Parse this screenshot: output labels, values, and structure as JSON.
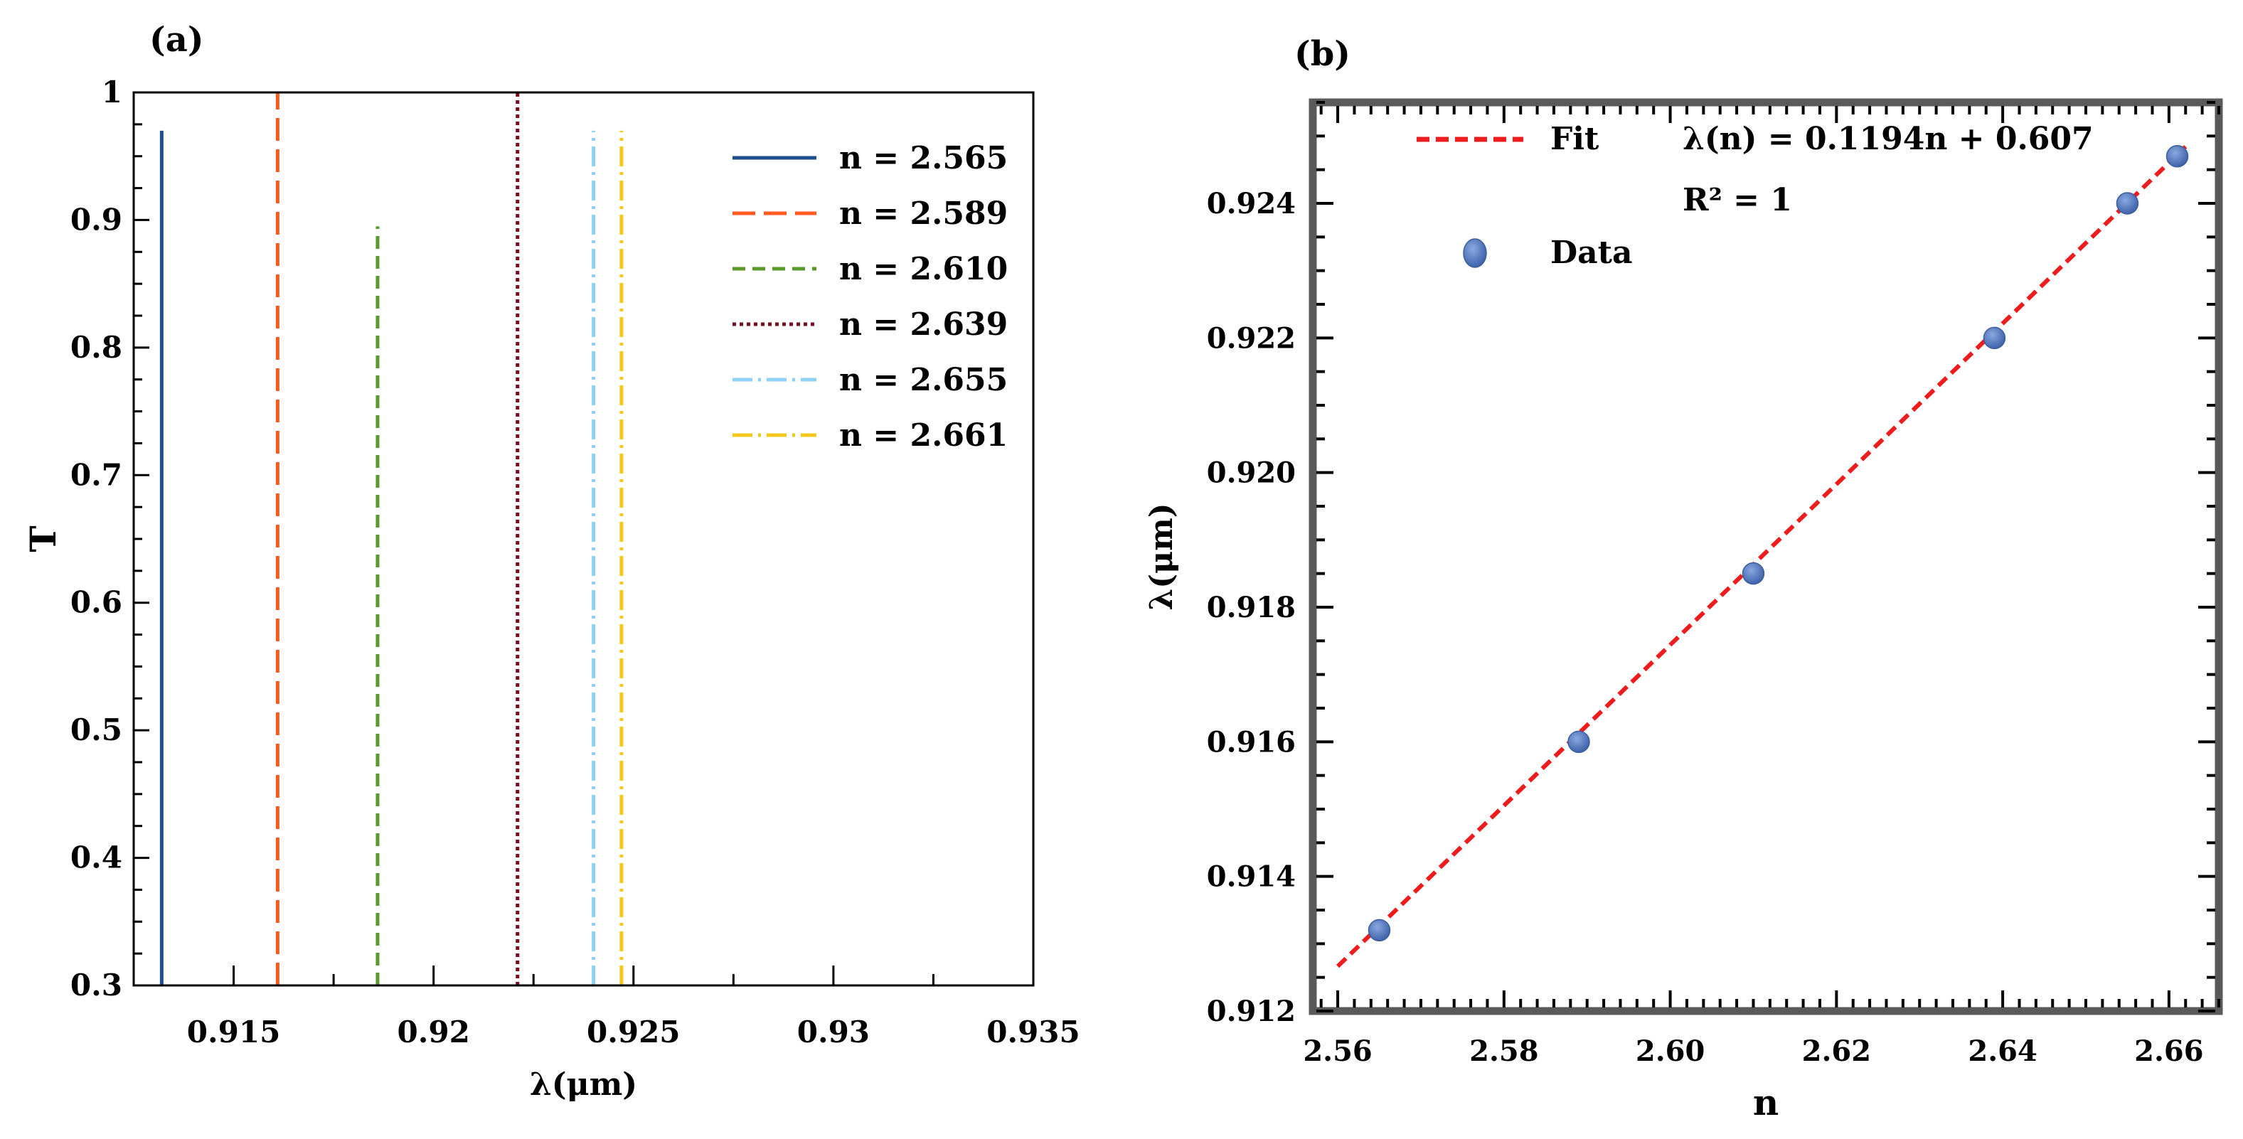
{
  "chart_data": [
    {
      "type": "line",
      "panel_label": "(a)",
      "title": "",
      "xlabel": "λ(μm)",
      "ylabel": "T",
      "xlim": [
        0.9125,
        0.935
      ],
      "ylim": [
        0.3,
        1.0
      ],
      "xticks": [
        0.915,
        0.92,
        0.925,
        0.93,
        0.935
      ],
      "xtick_labels": [
        "0.915",
        "0.92",
        "0.925",
        "0.93",
        "0.935"
      ],
      "yticks": [
        0.3,
        0.4,
        0.5,
        0.6,
        0.7,
        0.8,
        0.9,
        1.0
      ],
      "ytick_labels": [
        "0.3",
        "0.4",
        "0.5",
        "0.6",
        "0.7",
        "0.8",
        "0.9",
        "1"
      ],
      "legend_position": "top-right",
      "series": [
        {
          "name": "n = 2.565",
          "x": 0.9132,
          "peak": 0.97,
          "color": "#1f4e8c",
          "style": "solid"
        },
        {
          "name": "n = 2.589",
          "x": 0.9161,
          "peak": 1.0,
          "color": "#ff5a1f",
          "style": "long-dash"
        },
        {
          "name": "n = 2.610",
          "x": 0.9186,
          "peak": 0.895,
          "color": "#5a9a2a",
          "style": "dash"
        },
        {
          "name": "n = 2.639",
          "x": 0.9221,
          "peak": 1.0,
          "color": "#7a0c1e",
          "style": "dot"
        },
        {
          "name": "n = 2.655",
          "x": 0.924,
          "peak": 0.97,
          "color": "#8fd0f5",
          "style": "dash-dot"
        },
        {
          "name": "n = 2.661",
          "x": 0.9247,
          "peak": 0.97,
          "color": "#f7c81c",
          "style": "dash-dot"
        }
      ]
    },
    {
      "type": "scatter",
      "panel_label": "(b)",
      "title": "",
      "xlabel": "n",
      "ylabel": "λ(μm)",
      "xlim": [
        2.557,
        2.666
      ],
      "ylim": [
        0.912,
        0.9255
      ],
      "xticks": [
        2.56,
        2.58,
        2.6,
        2.62,
        2.64,
        2.66
      ],
      "xtick_labels": [
        "2.56",
        "2.58",
        "2.60",
        "2.62",
        "2.64",
        "2.66"
      ],
      "yticks": [
        0.912,
        0.914,
        0.916,
        0.918,
        0.92,
        0.922,
        0.924
      ],
      "ytick_labels": [
        "0.912",
        "0.914",
        "0.916",
        "0.918",
        "0.920",
        "0.922",
        "0.924"
      ],
      "legend_position": "top-left",
      "annotations": [
        "λ(n) = 0.1194n + 0.607",
        "R² = 1"
      ],
      "series": [
        {
          "name": "Data",
          "color": "#5b7fc0",
          "x": [
            2.565,
            2.589,
            2.61,
            2.639,
            2.655,
            2.661
          ],
          "y": [
            0.9132,
            0.916,
            0.9185,
            0.922,
            0.924,
            0.9247
          ]
        },
        {
          "name": "Fit",
          "color": "#ee1c1c",
          "style": "dash",
          "slope": 0.1194,
          "intercept": 0.607,
          "x": [
            2.56,
            2.662
          ]
        }
      ]
    }
  ]
}
